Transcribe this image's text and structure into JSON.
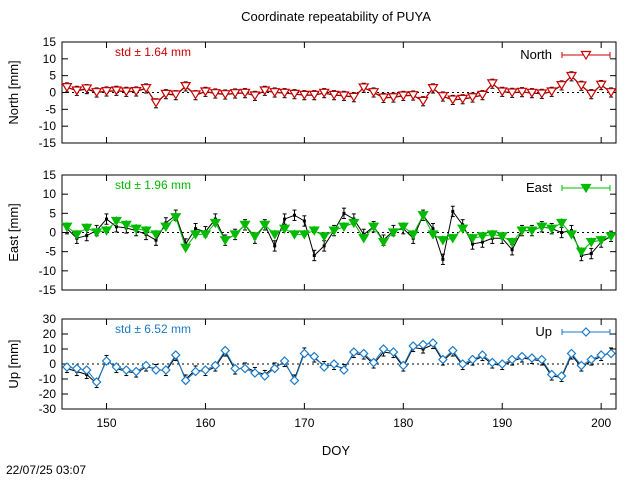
{
  "chart_data": {
    "type": "line",
    "title": "Coordinate repeatability of PUYA",
    "xlabel": "DOY",
    "xlim": [
      145.5,
      201.5
    ],
    "xticks": [
      150,
      160,
      170,
      180,
      190,
      200
    ],
    "timestamp": "22/07/25 03:07",
    "doy": [
      146,
      147,
      148,
      149,
      150,
      151,
      152,
      153,
      154,
      155,
      156,
      157,
      158,
      159,
      160,
      161,
      162,
      163,
      164,
      165,
      166,
      167,
      168,
      169,
      170,
      171,
      172,
      173,
      174,
      175,
      176,
      177,
      178,
      179,
      180,
      181,
      182,
      183,
      184,
      185,
      186,
      187,
      188,
      189,
      190,
      191,
      192,
      193,
      194,
      195,
      196,
      197,
      198,
      199,
      200,
      201
    ],
    "panels": [
      {
        "name": "North",
        "ylabel": "North [mm]",
        "ylim": [
          -15,
          15
        ],
        "yticks": [
          -15,
          -10,
          -5,
          0,
          5,
          10,
          15
        ],
        "color": "#cc0000",
        "std_label": "std ± 1.64 mm",
        "legend": "North",
        "marker": "triangle-down-open",
        "series_a": [
          1.5,
          0.5,
          1.0,
          0.0,
          0.3,
          0.5,
          0.2,
          0.3,
          1.2,
          -3.2,
          -0.5,
          -0.8,
          1.8,
          -0.8,
          0.2,
          -0.3,
          -0.6,
          -0.3,
          -0.2,
          -1.0,
          0.5,
          0.0,
          -0.2,
          -0.5,
          -0.8,
          -0.8,
          -0.2,
          -0.8,
          -1.0,
          -1.4,
          1.4,
          0.0,
          -1.6,
          -1.5,
          -1.0,
          -0.9,
          -2.6,
          1.2,
          -1.2,
          -2.2,
          -2.0,
          -1.5,
          -0.8,
          2.6,
          0.2,
          -0.1,
          0.1,
          -0.2,
          -0.4,
          0.2,
          2.1,
          4.8,
          2.0,
          -0.5,
          2.2,
          0.0
        ],
        "series_b": [
          1.6,
          0.6,
          1.2,
          0.1,
          0.4,
          0.6,
          0.3,
          0.4,
          1.3,
          -3.0,
          -0.4,
          -0.6,
          1.9,
          -0.6,
          0.3,
          -0.2,
          -0.5,
          -0.2,
          -0.1,
          -0.9,
          0.6,
          0.1,
          -0.1,
          -0.4,
          -0.7,
          -0.7,
          -0.1,
          -0.7,
          -0.9,
          -1.3,
          1.5,
          0.1,
          -1.5,
          -1.4,
          -0.9,
          -0.8,
          -2.5,
          1.3,
          -1.1,
          -2.1,
          -1.9,
          -1.4,
          -0.7,
          2.7,
          0.3,
          0.0,
          0.2,
          -0.1,
          -0.3,
          0.3,
          2.2,
          4.9,
          2.1,
          -0.4,
          2.3,
          0.1
        ]
      },
      {
        "name": "East",
        "ylabel": "East [mm]",
        "ylim": [
          -15,
          15
        ],
        "yticks": [
          -15,
          -10,
          -5,
          0,
          5,
          10,
          15
        ],
        "color": "#00bb00",
        "std_label": "std ± 1.96 mm",
        "legend": "East",
        "marker": "triangle-down-filled",
        "series_a": [
          1.0,
          -1.5,
          -0.8,
          0.5,
          3.5,
          1.5,
          1.2,
          0.5,
          -0.5,
          -2.0,
          2.5,
          4.5,
          -3.0,
          1.0,
          0.2,
          3.5,
          -2.0,
          -0.5,
          2.0,
          -1.5,
          2.0,
          -3.5,
          3.5,
          4.5,
          3.0,
          -6.0,
          -3.5,
          0.5,
          5.0,
          3.5,
          -0.5,
          1.5,
          -2.0,
          0.5,
          1.0,
          -1.5,
          4.5,
          1.0,
          -7.0,
          5.5,
          2.0,
          -3.0,
          -2.5,
          -1.5,
          -1.5,
          -4.5,
          0.5,
          0.5,
          1.5,
          1.0,
          0.0,
          0.5,
          -6.0,
          -5.5,
          -2.5,
          -1.0
        ],
        "series_b": [
          1.5,
          -0.5,
          1.2,
          0.0,
          0.5,
          3.0,
          2.0,
          1.0,
          0.5,
          -0.5,
          1.5,
          4.0,
          -4.0,
          -0.5,
          -0.5,
          2.5,
          -2.0,
          -0.5,
          2.0,
          -1.0,
          2.0,
          -0.5,
          1.0,
          -0.5,
          -0.5,
          0.5,
          -1.0,
          0.5,
          1.5,
          2.5,
          -1.5,
          1.5,
          -2.5,
          0.0,
          1.5,
          -0.5,
          4.5,
          -0.5,
          -2.0,
          -1.5,
          1.0,
          -1.5,
          -1.0,
          -0.5,
          -1.0,
          -2.5,
          0.5,
          0.5,
          1.5,
          1.0,
          2.5,
          -0.5,
          -5.0,
          -2.5,
          -2.0,
          -1.0
        ]
      },
      {
        "name": "Up",
        "ylabel": "Up [mm]",
        "ylim": [
          -30,
          30
        ],
        "yticks": [
          -30,
          -20,
          -10,
          0,
          10,
          20,
          30
        ],
        "color": "#1a7ac8",
        "std_label": "std ± 6.52 mm",
        "legend": "Up",
        "marker": "diamond-open",
        "series_a": [
          -3,
          -5,
          -7,
          -13,
          3,
          -3,
          -5,
          -6,
          -2,
          -3,
          -5,
          5,
          -10,
          -4,
          -5,
          -2,
          8,
          -4,
          -2,
          -5,
          -7,
          -2,
          1,
          -10,
          8,
          4,
          -1,
          -1,
          -3,
          7,
          6,
          0,
          8,
          7,
          -2,
          11,
          10,
          13,
          2,
          8,
          -1,
          2,
          5,
          0,
          -1,
          2,
          4,
          3,
          2,
          -8,
          -9,
          6,
          -2,
          2,
          5,
          8
        ],
        "series_b": [
          -2,
          -3,
          -4,
          -12,
          2,
          -2,
          -4,
          -5,
          -1,
          -4,
          -4,
          6,
          -11,
          -5,
          -4,
          -1,
          9,
          -3,
          -3,
          -6,
          -8,
          -3,
          2,
          -11,
          7,
          5,
          -2,
          0,
          -4,
          8,
          7,
          1,
          10,
          8,
          -1,
          12,
          13,
          14,
          3,
          9,
          0,
          3,
          6,
          1,
          0,
          3,
          5,
          4,
          3,
          -7,
          -8,
          7,
          -1,
          3,
          6,
          7
        ]
      }
    ]
  }
}
